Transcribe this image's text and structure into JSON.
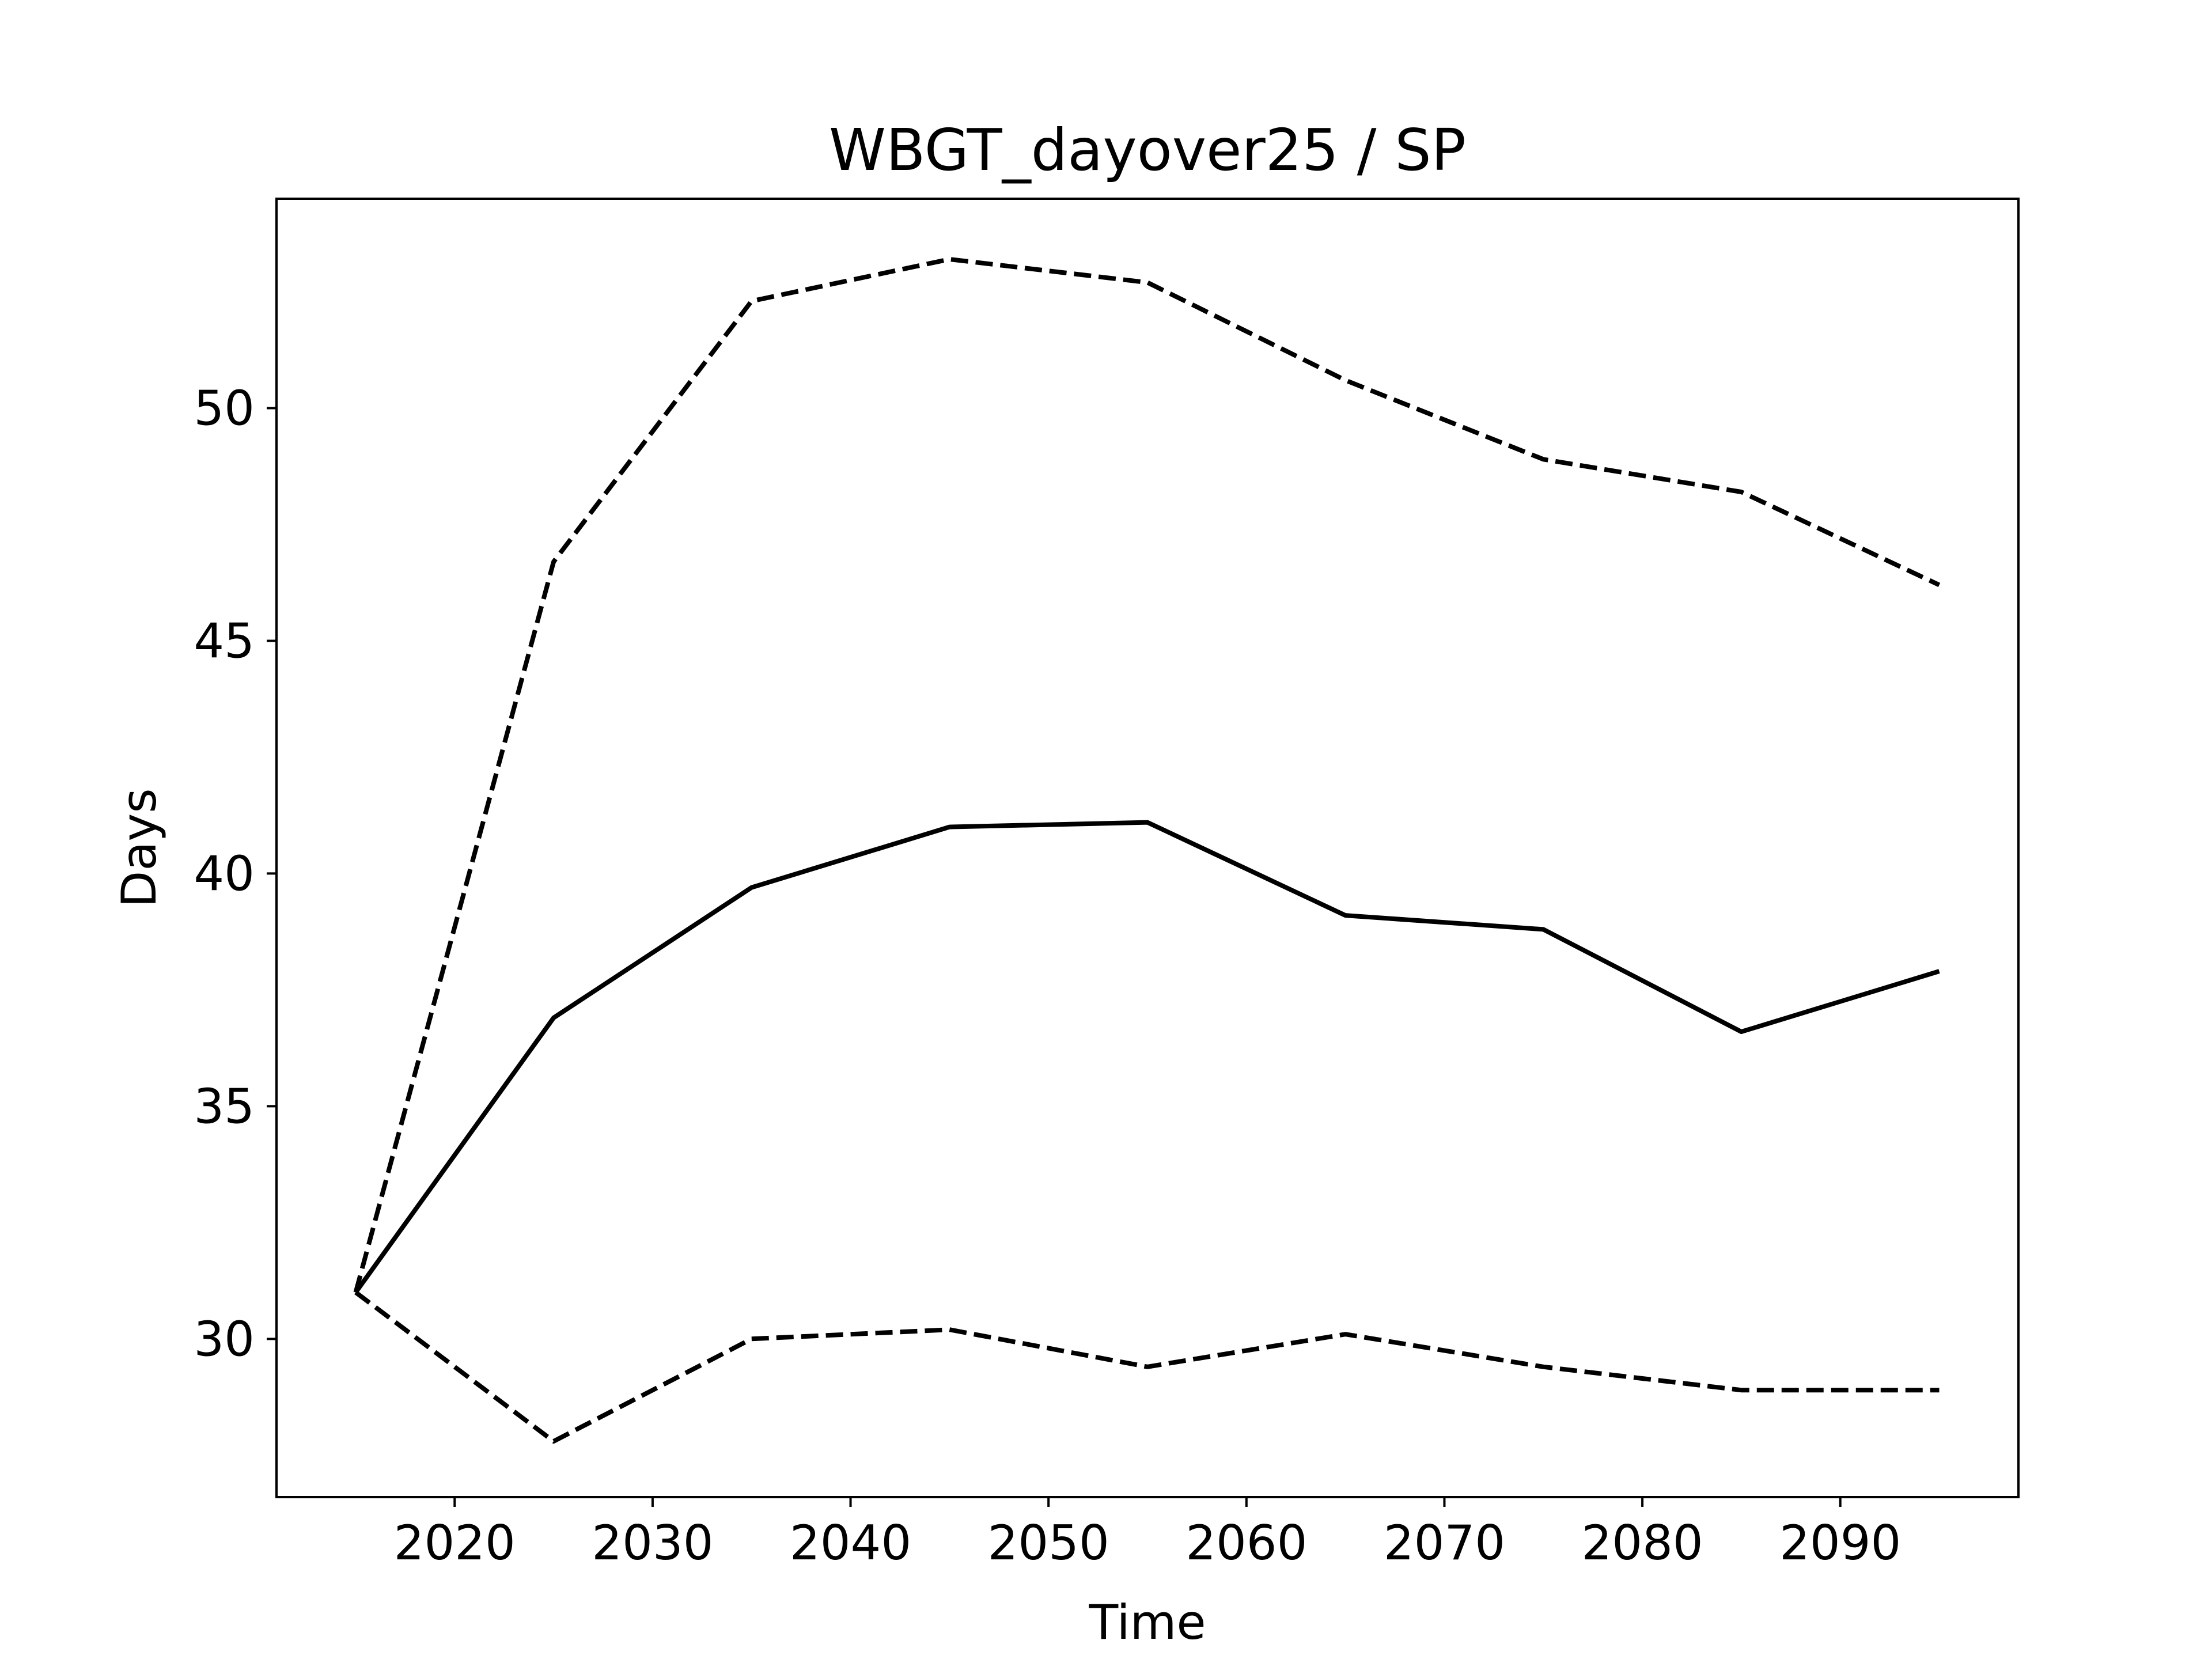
{
  "chart_data": {
    "type": "line",
    "title": "WBGT_dayover25 / SP",
    "xlabel": "Time",
    "ylabel": "Days",
    "x": [
      2015,
      2025,
      2035,
      2045,
      2055,
      2065,
      2075,
      2085,
      2095
    ],
    "series": [
      {
        "style": "solid",
        "color": "#000000",
        "values": [
          31.0,
          36.9,
          39.7,
          41.0,
          41.1,
          39.1,
          38.8,
          36.6,
          37.9
        ]
      },
      {
        "style": "dashed",
        "color": "#000000",
        "values": [
          31.0,
          46.7,
          52.3,
          53.2,
          52.7,
          50.6,
          48.9,
          48.2,
          46.2
        ]
      },
      {
        "style": "dashed",
        "color": "#000000",
        "values": [
          31.0,
          27.8,
          30.0,
          30.2,
          29.4,
          30.1,
          29.4,
          28.9,
          28.9
        ]
      }
    ],
    "xlim": [
      2011.0,
      2099.0
    ],
    "ylim": [
      26.6,
      54.5
    ],
    "xticks": [
      2020,
      2030,
      2040,
      2050,
      2060,
      2070,
      2080,
      2090
    ],
    "yticks": [
      30,
      35,
      40,
      45,
      50
    ],
    "grid": false,
    "legend": "none"
  }
}
